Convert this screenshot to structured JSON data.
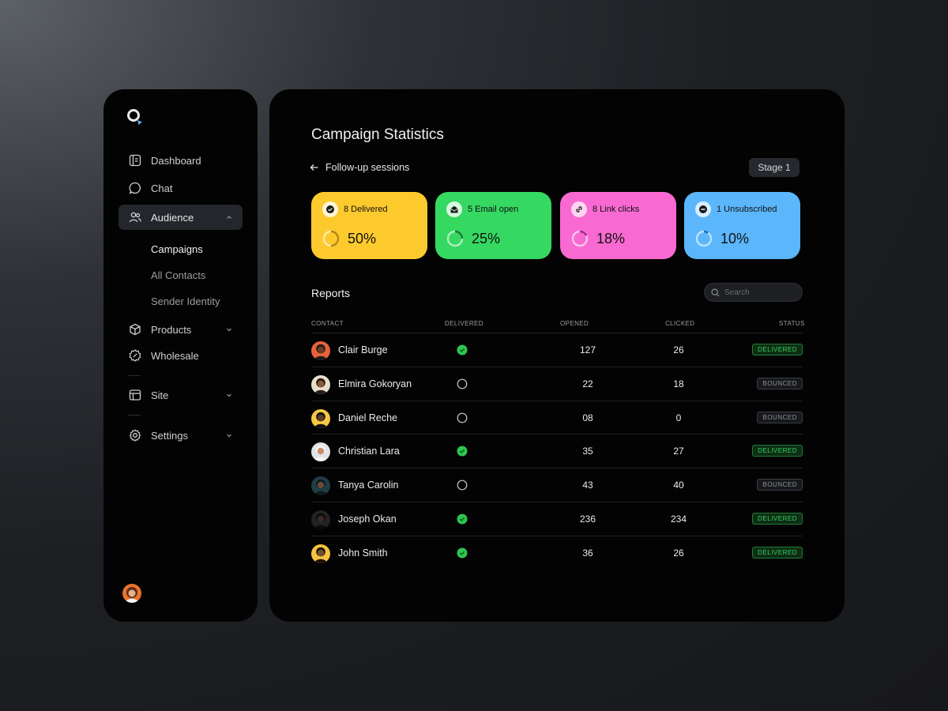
{
  "sidebar": {
    "nav": [
      {
        "label": "Dashboard",
        "icon": "dashboard-icon"
      },
      {
        "label": "Chat",
        "icon": "chat-icon"
      },
      {
        "label": "Audience",
        "icon": "audience-icon",
        "active": true
      },
      {
        "label": "Products",
        "icon": "box-icon"
      },
      {
        "label": "Wholesale",
        "icon": "discount-badge-icon"
      },
      {
        "label": "Site",
        "icon": "layout-icon"
      },
      {
        "label": "Settings",
        "icon": "gear-icon"
      }
    ],
    "sub_items": [
      {
        "label": "Campaigns",
        "active": true
      },
      {
        "label": "All Contacts"
      },
      {
        "label": "Sender Identity"
      }
    ]
  },
  "main": {
    "title": "Campaign Statistics",
    "back_label": "Follow-up sessions",
    "stage_label": "Stage 1",
    "stats": [
      {
        "label": "8 Delivered",
        "percent": "50%",
        "value": 50,
        "color": "#fdca2e",
        "icon": "check-icon"
      },
      {
        "label": "5 Email open",
        "percent": "25%",
        "value": 25,
        "color": "#35d861",
        "icon": "mail-open-icon"
      },
      {
        "label": "8 Link clicks",
        "percent": "18%",
        "value": 18,
        "color": "#f86ad2",
        "icon": "link-icon"
      },
      {
        "label": "1 Unsubscribed",
        "percent": "10%",
        "value": 10,
        "color": "#5cb6fb",
        "icon": "minus-circle-icon"
      }
    ],
    "reports": {
      "title": "Reports",
      "search_placeholder": "Search",
      "columns": [
        "CONTACT",
        "DELIVERED",
        "OPENED",
        "CLICKED",
        "STATUS"
      ],
      "rows": [
        {
          "name": "Clair Burge",
          "delivered": true,
          "opened": "127",
          "clicked": "26",
          "status": "DELIVERED"
        },
        {
          "name": "Elmira Gokoryan",
          "delivered": false,
          "opened": "22",
          "clicked": "18",
          "status": "BOUNCED"
        },
        {
          "name": "Daniel Reche",
          "delivered": false,
          "opened": "08",
          "clicked": "0",
          "status": "BOUNCED"
        },
        {
          "name": "Christian Lara",
          "delivered": true,
          "opened": "35",
          "clicked": "27",
          "status": "DELIVERED"
        },
        {
          "name": "Tanya Carolin",
          "delivered": false,
          "opened": "43",
          "clicked": "40",
          "status": "BOUNCED"
        },
        {
          "name": "Joseph Okan",
          "delivered": true,
          "opened": "236",
          "clicked": "234",
          "status": "DELIVERED"
        },
        {
          "name": "John Smith",
          "delivered": true,
          "opened": "36",
          "clicked": "26",
          "status": "DELIVERED"
        }
      ]
    }
  }
}
